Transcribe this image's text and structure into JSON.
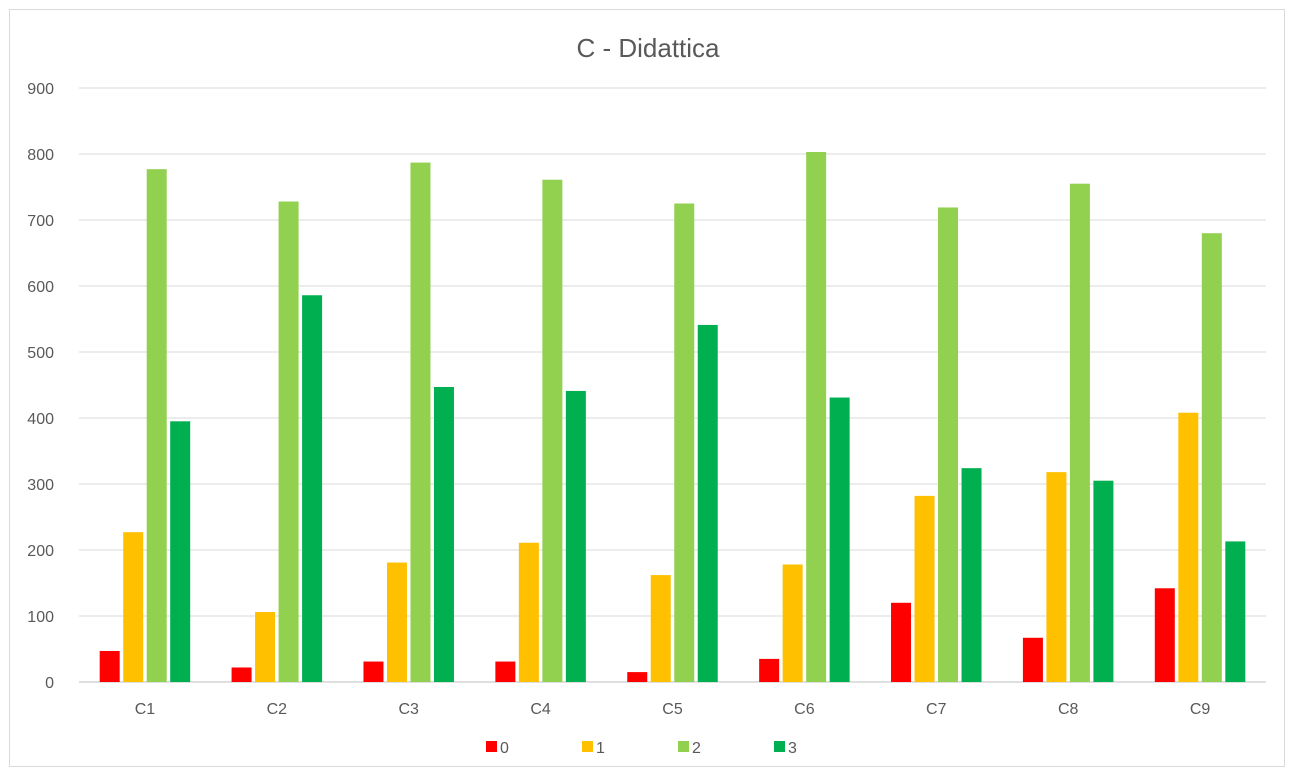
{
  "chart_data": {
    "type": "bar",
    "title": "C - Didattica",
    "xlabel": "",
    "ylabel": "",
    "ylim": [
      0,
      900
    ],
    "yticks": [
      0,
      100,
      200,
      300,
      400,
      500,
      600,
      700,
      800,
      900
    ],
    "grid": true,
    "legend_position": "bottom",
    "categories": [
      "C1",
      "C2",
      "C3",
      "C4",
      "C5",
      "C6",
      "C7",
      "C8",
      "C9"
    ],
    "series": [
      {
        "name": "0",
        "color": "#ff0000",
        "values": [
          47,
          22,
          31,
          31,
          15,
          35,
          120,
          67,
          142
        ]
      },
      {
        "name": "1",
        "color": "#ffc000",
        "values": [
          227,
          106,
          181,
          211,
          162,
          178,
          282,
          318,
          408
        ]
      },
      {
        "name": "2",
        "color": "#92d050",
        "values": [
          777,
          728,
          787,
          761,
          725,
          803,
          719,
          755,
          680
        ]
      },
      {
        "name": "3",
        "color": "#00b050",
        "values": [
          395,
          586,
          447,
          441,
          541,
          431,
          324,
          305,
          213
        ]
      }
    ]
  }
}
